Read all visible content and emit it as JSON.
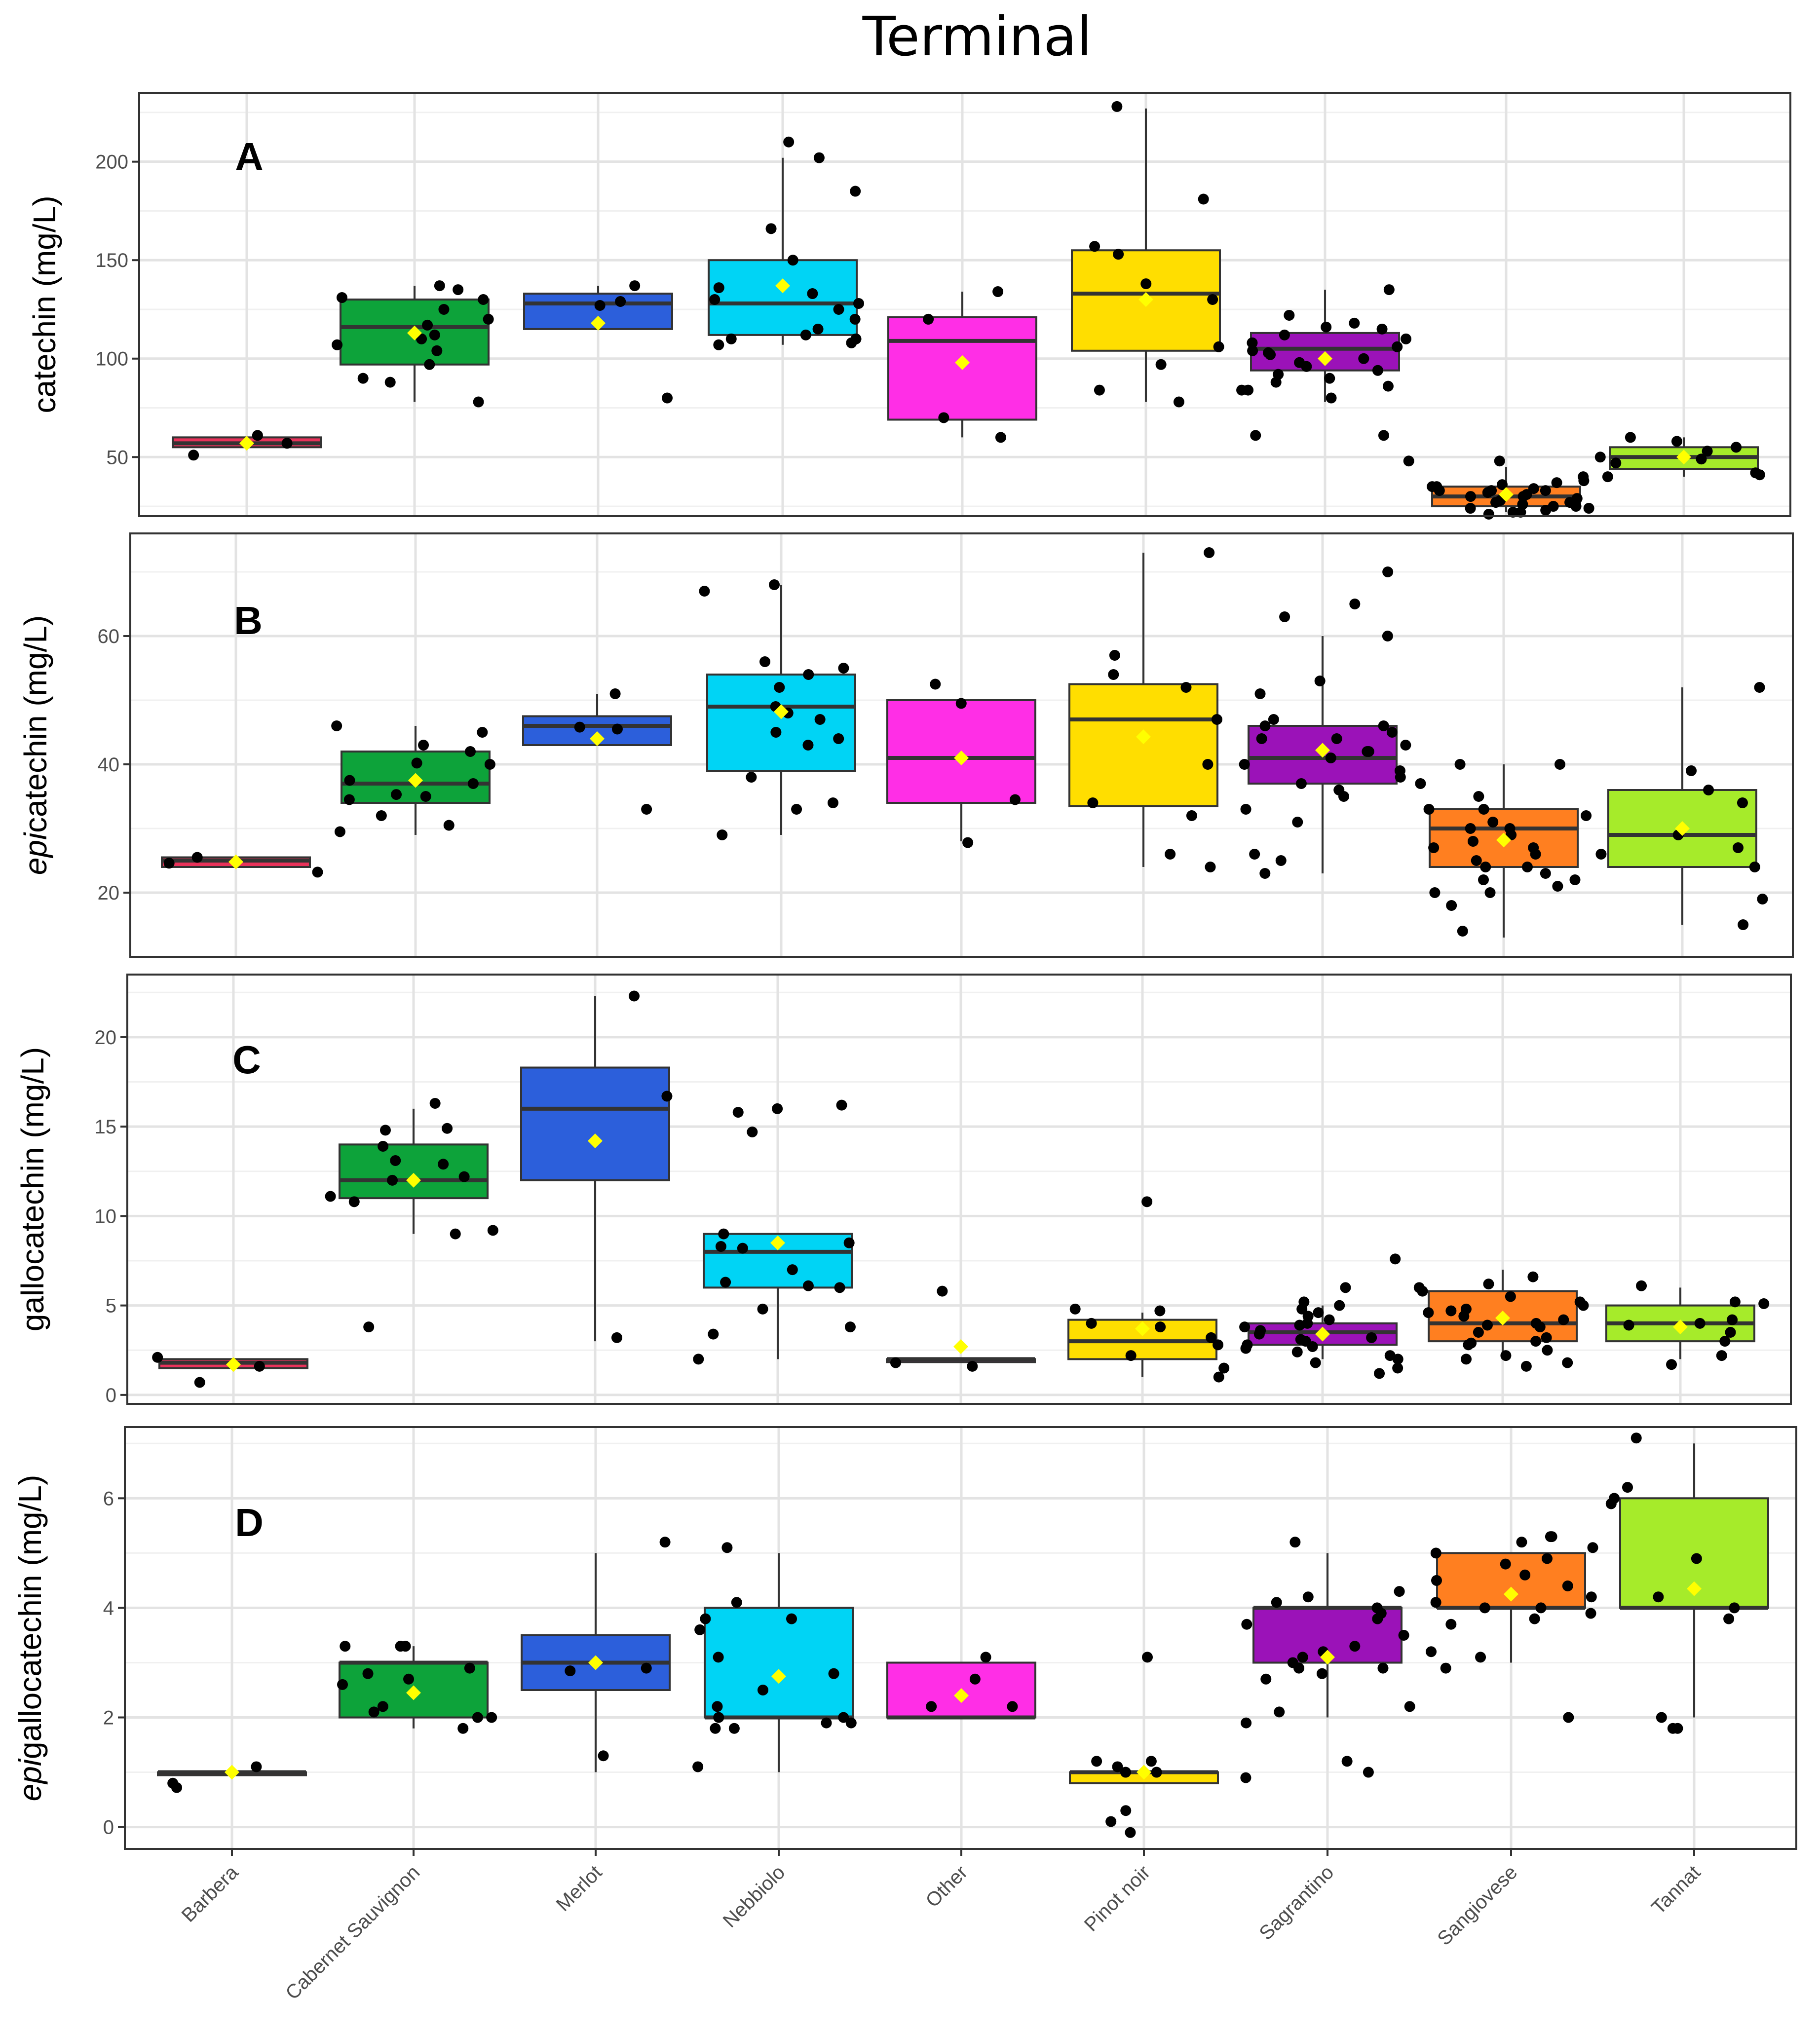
{
  "title": "Terminal",
  "categories": [
    "Barbera",
    "Cabernet Sauvignon",
    "Merlot",
    "Nebbiolo",
    "Other",
    "Pinot noir",
    "Sagrantino",
    "Sangiovese",
    "Tannat"
  ],
  "colors": [
    "#e8325a",
    "#0da33a",
    "#2c5fdb",
    "#00d4f5",
    "#ff2ee6",
    "#ffde00",
    "#9b12b8",
    "#ff7f20",
    "#a6eb2a"
  ],
  "mean_color": "#ffff00",
  "chart_data": [
    {
      "type": "box",
      "letter": "A",
      "ylabel": "catechin (mg/L)",
      "ylim": [
        20,
        235
      ],
      "yticks": [
        50,
        100,
        150,
        200
      ],
      "boxes": [
        {
          "q1": 55,
          "median": 57,
          "q3": 60,
          "lo": 55,
          "hi": 60,
          "mean": 57,
          "points": [
            51,
            57,
            61
          ]
        },
        {
          "q1": 97,
          "median": 116,
          "q3": 130,
          "lo": 78,
          "hi": 137,
          "mean": 113,
          "points": [
            97,
            107,
            88,
            78,
            90,
            130,
            137,
            135,
            131,
            125,
            120,
            117,
            110,
            104,
            112
          ]
        },
        {
          "q1": 115,
          "median": 128,
          "q3": 133,
          "lo": 115,
          "hi": 137,
          "mean": 118,
          "points": [
            129,
            127,
            80,
            137
          ]
        },
        {
          "q1": 112,
          "median": 128,
          "q3": 150,
          "lo": 107,
          "hi": 202,
          "mean": 137,
          "points": [
            150,
            185,
            202,
            210,
            166,
            125,
            133,
            130,
            128,
            120,
            112,
            107,
            110,
            136,
            115,
            108,
            110
          ]
        },
        {
          "q1": 69,
          "median": 109,
          "q3": 121,
          "lo": 60,
          "hi": 134,
          "mean": 98,
          "points": [
            134,
            70,
            60,
            120
          ]
        },
        {
          "q1": 104,
          "median": 133,
          "q3": 155,
          "lo": 78,
          "hi": 227,
          "mean": 130,
          "points": [
            228,
            181,
            157,
            153,
            106,
            84,
            78,
            97,
            138,
            130
          ]
        },
        {
          "q1": 94,
          "median": 105,
          "q3": 113,
          "lo": 78,
          "hi": 135,
          "mean": 100,
          "points": [
            135,
            118,
            115,
            112,
            110,
            108,
            106,
            104,
            102,
            100,
            98,
            96,
            94,
            92,
            90,
            88,
            84,
            80,
            61,
            61,
            48,
            122,
            116,
            103,
            86,
            84
          ]
        },
        {
          "q1": 25,
          "median": 30,
          "q3": 35,
          "lo": 22,
          "hi": 45,
          "mean": 31,
          "points": [
            40,
            38,
            36,
            35,
            34,
            33,
            32,
            31,
            30,
            29,
            28,
            27,
            26,
            25,
            24,
            23,
            22,
            48,
            37,
            33,
            30,
            27,
            25,
            24,
            22,
            21,
            35,
            33
          ]
        },
        {
          "q1": 44,
          "median": 50,
          "q3": 55,
          "lo": 40,
          "hi": 60,
          "mean": 50,
          "points": [
            41,
            49,
            50,
            40,
            60,
            58,
            55,
            53,
            47,
            42
          ]
        }
      ]
    },
    {
      "type": "box",
      "letter": "B",
      "ylabel_em": "epi",
      "ylabel": "catechin (mg/L)",
      "ylim": [
        10,
        76
      ],
      "yticks": [
        20,
        40,
        60
      ],
      "boxes": [
        {
          "q1": 24,
          "median": 25,
          "q3": 25.5,
          "lo": 24,
          "hi": 25.5,
          "mean": 24.8,
          "points": [
            25.5,
            23.2,
            24.6
          ]
        },
        {
          "q1": 34,
          "median": 37,
          "q3": 42,
          "lo": 29,
          "hi": 46,
          "mean": 37.5,
          "points": [
            45,
            34.5,
            40,
            32,
            29.5,
            30.5,
            42,
            46,
            43,
            37,
            35,
            37.5,
            35.3,
            40.2
          ]
        },
        {
          "q1": 43,
          "median": 46,
          "q3": 47.5,
          "lo": 43,
          "hi": 51,
          "mean": 44,
          "points": [
            51,
            33,
            45.5,
            45.8
          ]
        },
        {
          "q1": 39,
          "median": 49,
          "q3": 54,
          "lo": 29,
          "hi": 68,
          "mean": 48.2,
          "points": [
            54,
            38,
            48,
            43,
            44,
            55,
            45,
            49,
            47,
            52,
            56,
            68,
            67,
            34,
            33,
            29
          ]
        },
        {
          "q1": 34,
          "median": 41,
          "q3": 50,
          "lo": 28,
          "hi": 50,
          "mean": 41,
          "points": [
            52.5,
            49.5,
            34.5,
            27.8
          ]
        },
        {
          "q1": 33.5,
          "median": 47,
          "q3": 52.5,
          "lo": 24,
          "hi": 73,
          "mean": 44.3,
          "points": [
            73,
            57,
            54,
            52,
            47,
            40,
            34,
            32,
            26,
            24
          ]
        },
        {
          "q1": 37,
          "median": 41,
          "q3": 46,
          "lo": 23,
          "hi": 60,
          "mean": 42.2,
          "points": [
            70,
            65,
            60,
            53,
            51,
            47,
            46,
            45,
            44,
            43,
            42,
            41,
            40,
            39,
            38,
            37,
            36,
            35,
            33,
            31,
            26,
            25,
            23,
            63,
            46,
            44,
            42
          ]
        },
        {
          "q1": 24,
          "median": 30,
          "q3": 33,
          "lo": 13,
          "hi": 40,
          "mean": 28.2,
          "points": [
            40,
            37,
            35,
            33,
            32,
            31,
            30,
            29,
            28,
            27,
            26,
            25,
            24,
            23,
            22,
            21,
            20,
            18,
            14,
            33,
            30,
            27,
            24,
            22,
            20,
            40
          ]
        },
        {
          "q1": 24,
          "median": 29,
          "q3": 36,
          "lo": 15,
          "hi": 52,
          "mean": 30,
          "points": [
            52,
            39,
            36,
            34,
            29,
            27,
            26,
            24,
            19,
            15
          ]
        }
      ]
    },
    {
      "type": "box",
      "letter": "C",
      "ylabel": "gallocatechin (mg/L)",
      "ylim": [
        -0.5,
        23.5
      ],
      "yticks": [
        0,
        5,
        10,
        15,
        20
      ],
      "boxes": [
        {
          "q1": 1.5,
          "median": 1.8,
          "q3": 2,
          "lo": 1.5,
          "hi": 2,
          "mean": 1.7,
          "points": [
            2.1,
            1.6,
            0.7
          ]
        },
        {
          "q1": 11,
          "median": 12,
          "q3": 14,
          "lo": 9,
          "hi": 16,
          "mean": 12,
          "points": [
            16.3,
            14.8,
            12.2,
            13.1,
            13.9,
            11.1,
            10.8,
            9.2,
            9.0,
            3.8,
            12.9,
            14.9,
            12.0
          ]
        },
        {
          "q1": 12,
          "median": 16,
          "q3": 18.3,
          "lo": 3,
          "hi": 22.3,
          "mean": 14.2,
          "points": [
            22.3,
            16.7,
            3.2
          ]
        },
        {
          "q1": 6,
          "median": 8,
          "q3": 9,
          "lo": 2,
          "hi": 9,
          "mean": 8.5,
          "points": [
            16.2,
            16,
            15.8,
            14.7,
            9,
            8.5,
            8.3,
            8.2,
            7,
            6.3,
            6.1,
            6.0,
            4.8,
            3.8,
            3.4,
            2.0
          ]
        },
        {
          "q1": 2,
          "median": 2,
          "q3": 2,
          "lo": 2,
          "hi": 2,
          "mean": 2.7,
          "points": [
            5.8,
            1.8,
            1.6
          ]
        },
        {
          "q1": 2,
          "median": 3,
          "q3": 4.2,
          "lo": 1,
          "hi": 4.6,
          "mean": 3.7,
          "points": [
            10.8,
            4.8,
            4.7,
            4.0,
            3.8,
            3.2,
            2.8,
            2.2,
            1.5,
            1.0
          ]
        },
        {
          "q1": 2.8,
          "median": 3.5,
          "q3": 4,
          "lo": 2,
          "hi": 5,
          "mean": 3.4,
          "points": [
            7.6,
            6,
            5.2,
            5,
            4.8,
            4.6,
            4.4,
            4.2,
            4.0,
            3.8,
            3.6,
            3.4,
            3.2,
            3.0,
            2.8,
            2.6,
            2.4,
            2.2,
            2.0,
            1.8,
            1.5,
            1.2,
            3.9,
            3.1,
            2.7
          ]
        },
        {
          "q1": 3,
          "median": 4,
          "q3": 5.8,
          "lo": 2,
          "hi": 7,
          "mean": 4.3,
          "points": [
            6.6,
            6.2,
            6.0,
            5.8,
            5.5,
            5.2,
            5.0,
            4.8,
            4.6,
            4.4,
            4.2,
            4.0,
            3.8,
            3.5,
            3.2,
            3.0,
            2.8,
            2.5,
            2.2,
            2.0,
            1.8,
            1.6,
            4.7,
            3.9,
            2.9
          ]
        },
        {
          "q1": 3,
          "median": 4,
          "q3": 5,
          "lo": 2,
          "hi": 6,
          "mean": 3.8,
          "points": [
            6.1,
            5.2,
            5.1,
            4.2,
            4.0,
            3.9,
            3.5,
            3.0,
            2.2,
            1.7
          ]
        }
      ]
    },
    {
      "type": "box",
      "letter": "D",
      "ylabel_em": "epi",
      "ylabel": "gallocatechin (mg/L)",
      "ylim": [
        -0.4,
        7.3
      ],
      "yticks": [
        0,
        2,
        4,
        6
      ],
      "boxes": [
        {
          "q1": 1,
          "median": 1,
          "q3": 1,
          "lo": 1,
          "hi": 1,
          "mean": 1,
          "points": [
            1.1,
            0.8,
            0.72
          ]
        },
        {
          "q1": 2,
          "median": 3,
          "q3": 3,
          "lo": 1.8,
          "hi": 3.3,
          "mean": 2.45,
          "points": [
            3.3,
            3.3,
            2.7,
            2.6,
            2.2,
            2.0,
            2.0,
            1.8,
            3.3,
            2.8,
            2.1,
            2.9
          ]
        },
        {
          "q1": 2.5,
          "median": 3,
          "q3": 3.5,
          "lo": 1,
          "hi": 5,
          "mean": 3,
          "points": [
            5.2,
            2.9,
            2.85,
            1.3
          ]
        },
        {
          "q1": 2,
          "median": 2,
          "q3": 4,
          "lo": 1,
          "hi": 5,
          "mean": 2.75,
          "points": [
            5.1,
            4.1,
            3.8,
            3.6,
            3.1,
            2.8,
            2.5,
            2.2,
            2.0,
            1.9,
            1.8,
            1.8,
            1.1,
            3.8,
            2.0,
            1.9
          ]
        },
        {
          "q1": 2,
          "median": 2,
          "q3": 3,
          "lo": 2,
          "hi": 3,
          "mean": 2.4,
          "points": [
            3.1,
            2.7,
            2.2,
            2.2
          ]
        },
        {
          "q1": 0.8,
          "median": 1,
          "q3": 1,
          "lo": 0.8,
          "hi": 1,
          "mean": 1,
          "points": [
            3.1,
            1.2,
            1.2,
            1.1,
            1.0,
            1.0,
            0.3,
            0.1,
            -0.1
          ]
        },
        {
          "q1": 3,
          "median": 4,
          "q3": 4,
          "lo": 2,
          "hi": 5,
          "mean": 3.1,
          "points": [
            5.2,
            4.3,
            4.2,
            4.1,
            4.0,
            3.9,
            3.8,
            3.7,
            3.5,
            3.3,
            3.2,
            3.0,
            2.9,
            2.8,
            2.7,
            2.2,
            2.1,
            1.9,
            1.2,
            1.0,
            0.9,
            3.1,
            2.9
          ]
        },
        {
          "q1": 4,
          "median": 4,
          "q3": 5,
          "lo": 3,
          "hi": 5,
          "mean": 4.25,
          "points": [
            5.3,
            5.2,
            5.1,
            5.0,
            4.9,
            4.8,
            4.6,
            4.4,
            4.2,
            4.1,
            4.0,
            3.9,
            3.8,
            3.7,
            3.2,
            3.1,
            2.9,
            2.0,
            5.3,
            4.5,
            4.0
          ]
        },
        {
          "q1": 4,
          "median": 4,
          "q3": 6,
          "lo": 2,
          "hi": 7,
          "mean": 4.35,
          "points": [
            7.1,
            6.2,
            6.0,
            5.9,
            4.9,
            4.2,
            4.0,
            3.8,
            2.0,
            1.8,
            1.8
          ]
        }
      ]
    }
  ]
}
